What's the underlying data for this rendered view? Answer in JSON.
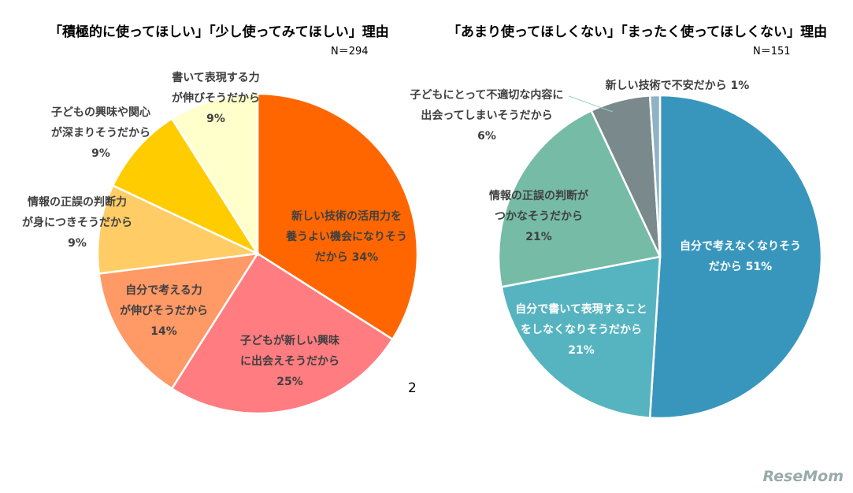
{
  "chart_data": [
    {
      "type": "pie",
      "title": "「積極的に使ってほしい」「少し使ってみてほしい」理由",
      "n_label": "N＝294",
      "slices": [
        {
          "label": [
            "新しい技術の活用力を",
            "養うよい機会になりそう",
            "だから 34%"
          ],
          "value": 34,
          "color": "#FF6600"
        },
        {
          "label": [
            "子どもが新しい興味",
            "に出会えそうだから",
            "25%"
          ],
          "value": 25,
          "color": "#FF7C80"
        },
        {
          "label": [
            "自分で考える力",
            "が伸びそうだから",
            "14%"
          ],
          "value": 14,
          "color": "#FF9966"
        },
        {
          "label": [
            "情報の正誤の判断力",
            "が身につきそうだから",
            "9%"
          ],
          "value": 9,
          "color": "#FFCC66"
        },
        {
          "label": [
            "子どもの興味や関心",
            "が深まりそうだから",
            "9%"
          ],
          "value": 9,
          "color": "#FFCC00"
        },
        {
          "label": [
            "書いて表現する力",
            "が伸びそうだから",
            "9%"
          ],
          "value": 9,
          "color": "#FFFFCC"
        }
      ]
    },
    {
      "type": "pie",
      "title": "「あまり使ってほしくない」「まったく使ってほしくない」理由",
      "n_label": "N＝151",
      "slices": [
        {
          "label": [
            "自分で考えなくなりそう",
            "だから 51%"
          ],
          "value": 51,
          "color": "#3896BD"
        },
        {
          "label": [
            "自分で書いて表現すること",
            "をしなくなりそうだから",
            "21%"
          ],
          "value": 21,
          "color": "#56B4C0"
        },
        {
          "label": [
            "情報の正誤の判断が",
            "つかなそうだから",
            "21%"
          ],
          "value": 21,
          "color": "#76BBA6"
        },
        {
          "label": [
            "子どもにとって不適切な内容に",
            "出会ってしまいそうだから",
            "6%"
          ],
          "value": 6,
          "color": "#7A8A8C"
        },
        {
          "label": [
            "新しい技術で不安だから 1%"
          ],
          "value": 1,
          "color": "#8FB3C4"
        }
      ]
    }
  ],
  "page_number": "2",
  "logo": "ReseMom"
}
